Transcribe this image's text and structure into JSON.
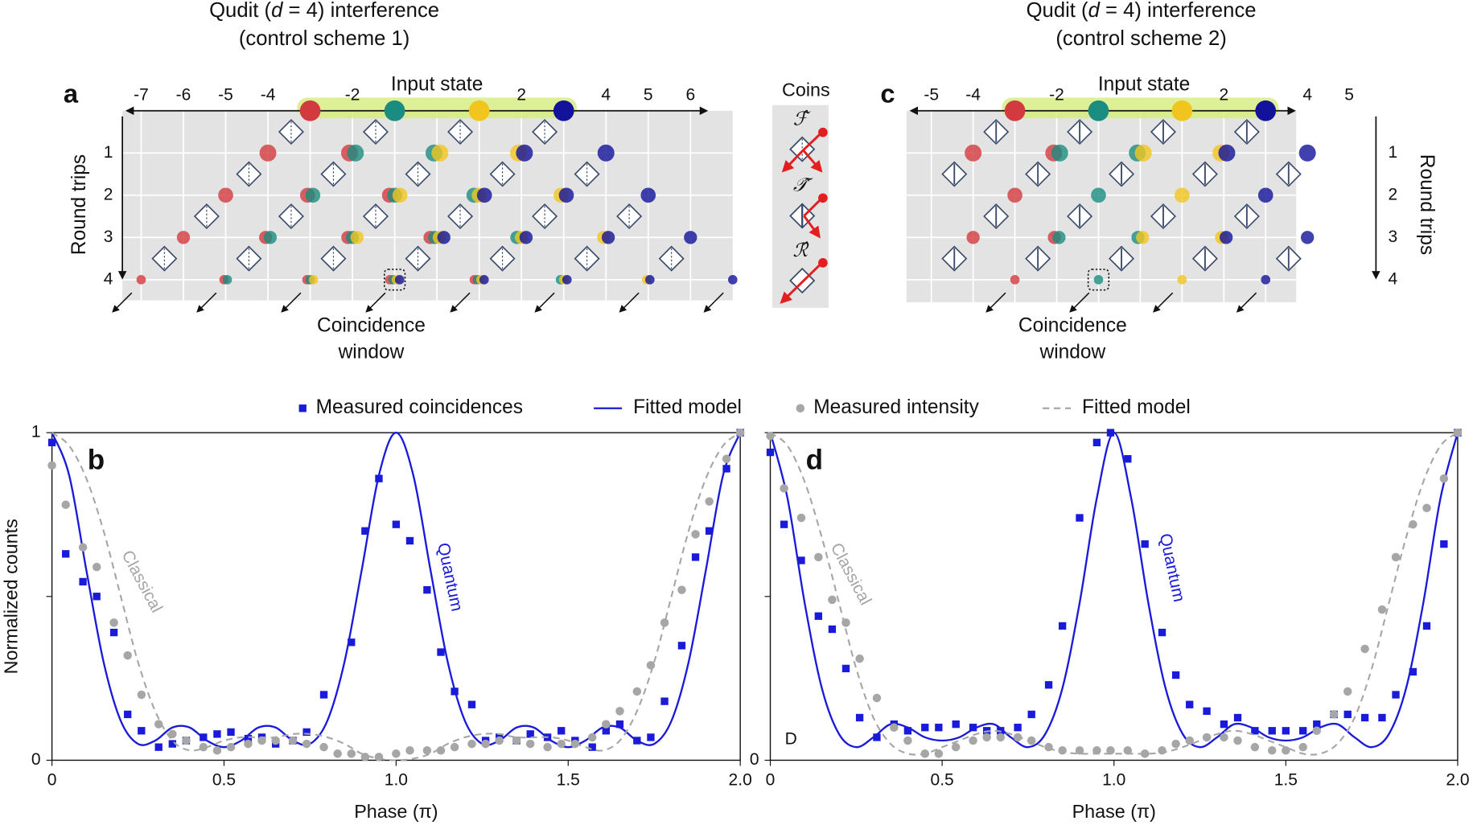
{
  "diagram_a": {
    "label": "a",
    "title": [
      "Qudit (",
      "d",
      " = 4) interference"
    ],
    "subtitle": "(control scheme 1)",
    "input_label": "Input state",
    "positions": [
      -7,
      -6,
      -5,
      -4,
      -2,
      2,
      4,
      5,
      6
    ],
    "rows": [
      1,
      2,
      3,
      4
    ],
    "axis_label": "Round trips",
    "output_label": [
      "Coincidence",
      "window"
    ]
  },
  "diagram_c": {
    "label": "c",
    "title": [
      "Qudit (",
      "d",
      " = 4) interference"
    ],
    "subtitle": "(control scheme 2)",
    "input_label": "Input state",
    "positions": [
      -5,
      -4,
      -2,
      2,
      4,
      5
    ],
    "rows": [
      1,
      2,
      3,
      4
    ],
    "axis_label": "Round trips",
    "output_label": [
      "Coincidence",
      "window"
    ]
  },
  "coins": {
    "title": "Coins",
    "labels": [
      "ℱ̂",
      "𝒯̂",
      "ℛ̂"
    ]
  },
  "chart_data": [
    {
      "type": "line",
      "label": "b",
      "xlabel": "Phase (π)",
      "ylabel": "Normalized counts",
      "xlim": [
        0,
        2
      ],
      "ylim": [
        0,
        1
      ],
      "xticks": [
        0,
        0.5,
        {
          "value": 1,
          "label": "1.0"
        },
        1.5,
        {
          "value": 2,
          "label": "2.0"
        }
      ],
      "yticks": [
        0,
        1
      ],
      "yminor": [
        0.5
      ],
      "annotations": [
        "Classical",
        "Quantum"
      ],
      "series": [
        {
          "name": "Measured coincidences",
          "marker": "square",
          "color": "#1a1adb",
          "x": [
            0,
            0.04,
            0.09,
            0.13,
            0.18,
            0.22,
            0.26,
            0.31,
            0.35,
            0.39,
            0.44,
            0.48,
            0.52,
            0.57,
            0.61,
            0.65,
            0.7,
            0.74,
            0.79,
            0.87,
            0.91,
            0.95,
            1.0,
            1.04,
            1.09,
            1.13,
            1.17,
            1.22,
            1.26,
            1.3,
            1.35,
            1.39,
            1.44,
            1.48,
            1.52,
            1.57,
            1.61,
            1.65,
            1.7,
            1.74,
            1.78,
            1.83,
            1.87,
            1.91,
            1.96,
            2.0
          ],
          "values": [
            0.97,
            0.63,
            0.545,
            0.5,
            0.39,
            0.14,
            0.09,
            0.04,
            0.05,
            0.06,
            0.07,
            0.08,
            0.086,
            0.066,
            0.07,
            0.05,
            0.06,
            0.086,
            0.2,
            0.36,
            0.7,
            0.86,
            0.72,
            0.67,
            0.52,
            0.33,
            0.21,
            0.17,
            0.06,
            0.07,
            0.06,
            0.08,
            0.07,
            0.09,
            0.06,
            0.04,
            0.09,
            0.11,
            0.06,
            0.07,
            0.18,
            0.35,
            0.62,
            0.7,
            0.89,
            1.0
          ]
        },
        {
          "name": "Fitted model",
          "linestyle": "solid",
          "color": "#1a1adb",
          "x": [
            0,
            0.05,
            0.1,
            0.15,
            0.2,
            0.25,
            0.3,
            0.35,
            0.4,
            0.45,
            0.5,
            0.55,
            0.6,
            0.65,
            0.7,
            0.75,
            0.8,
            0.85,
            0.9,
            0.95,
            1.0,
            1.05,
            1.1,
            1.15,
            1.2,
            1.25,
            1.3,
            1.35,
            1.4,
            1.45,
            1.5,
            1.55,
            1.6,
            1.65,
            1.7,
            1.75,
            1.8,
            1.85,
            1.9,
            1.95,
            2.0
          ],
          "values": [
            1.0,
            0.87,
            0.58,
            0.3,
            0.12,
            0.05,
            0.06,
            0.1,
            0.1,
            0.06,
            0.04,
            0.06,
            0.1,
            0.1,
            0.06,
            0.05,
            0.12,
            0.3,
            0.58,
            0.87,
            1.0,
            0.87,
            0.58,
            0.3,
            0.12,
            0.05,
            0.06,
            0.1,
            0.1,
            0.06,
            0.04,
            0.06,
            0.1,
            0.1,
            0.06,
            0.05,
            0.12,
            0.3,
            0.58,
            0.87,
            1.0
          ]
        },
        {
          "name": "Measured intensity",
          "marker": "circle",
          "color": "#a6a6a6",
          "x": [
            0,
            0.04,
            0.09,
            0.13,
            0.18,
            0.22,
            0.26,
            0.31,
            0.35,
            0.39,
            0.44,
            0.48,
            0.52,
            0.57,
            0.61,
            0.65,
            0.7,
            0.74,
            0.79,
            0.83,
            0.87,
            0.91,
            0.95,
            1.0,
            1.04,
            1.09,
            1.13,
            1.17,
            1.22,
            1.26,
            1.3,
            1.35,
            1.39,
            1.44,
            1.48,
            1.52,
            1.57,
            1.61,
            1.65,
            1.7,
            1.74,
            1.78,
            1.83,
            1.87,
            1.91,
            1.96,
            2.0
          ],
          "values": [
            0.9,
            0.78,
            0.65,
            0.59,
            0.42,
            0.32,
            0.2,
            0.11,
            0.08,
            0.06,
            0.04,
            0.03,
            0.04,
            0.05,
            0.06,
            0.06,
            0.06,
            0.05,
            0.04,
            0.02,
            0.02,
            0.01,
            0.01,
            0.02,
            0.03,
            0.03,
            0.03,
            0.04,
            0.05,
            0.05,
            0.06,
            0.06,
            0.05,
            0.04,
            0.05,
            0.05,
            0.07,
            0.11,
            0.15,
            0.21,
            0.29,
            0.42,
            0.52,
            0.69,
            0.79,
            0.92,
            1.0
          ]
        },
        {
          "name": "Fitted model",
          "linestyle": "dashed",
          "color": "#a6a6a6",
          "x": [
            0,
            0.05,
            0.1,
            0.15,
            0.2,
            0.25,
            0.3,
            0.35,
            0.4,
            0.45,
            0.5,
            0.55,
            0.6,
            0.65,
            0.7,
            0.75,
            0.8,
            0.85,
            0.9,
            0.95,
            1.0,
            1.05,
            1.1,
            1.15,
            1.2,
            1.25,
            1.3,
            1.35,
            1.4,
            1.45,
            1.5,
            1.55,
            1.6,
            1.65,
            1.7,
            1.75,
            1.8,
            1.85,
            1.9,
            1.95,
            2.0
          ],
          "values": [
            1.0,
            0.96,
            0.86,
            0.7,
            0.5,
            0.3,
            0.15,
            0.06,
            0.03,
            0.04,
            0.06,
            0.07,
            0.07,
            0.07,
            0.08,
            0.08,
            0.07,
            0.05,
            0.02,
            0.005,
            0.0,
            0.005,
            0.02,
            0.05,
            0.07,
            0.08,
            0.08,
            0.07,
            0.07,
            0.07,
            0.06,
            0.04,
            0.03,
            0.06,
            0.15,
            0.3,
            0.5,
            0.7,
            0.86,
            0.96,
            1.0
          ]
        }
      ]
    },
    {
      "type": "line",
      "label": "d",
      "xlabel": "Phase (π)",
      "note": "D",
      "xlim": [
        0,
        2
      ],
      "ylim": [
        0,
        1
      ],
      "xticks": [
        0,
        0.5,
        {
          "value": 1,
          "label": "1.0"
        },
        1.5,
        {
          "value": 2,
          "label": "2.0"
        }
      ],
      "yticks": [
        0
      ],
      "yminor": [
        0.5,
        1
      ],
      "annotations": [
        "Classical",
        "Quantum"
      ],
      "series": [
        {
          "marker": "square",
          "color": "#1a1adb",
          "x": [
            0,
            0.04,
            0.09,
            0.14,
            0.18,
            0.22,
            0.26,
            0.31,
            0.36,
            0.4,
            0.45,
            0.49,
            0.54,
            0.59,
            0.63,
            0.67,
            0.72,
            0.76,
            0.81,
            0.85,
            0.9,
            0.95,
            0.99,
            1.04,
            1.09,
            1.14,
            1.18,
            1.22,
            1.27,
            1.32,
            1.36,
            1.41,
            1.46,
            1.5,
            1.55,
            1.59,
            1.64,
            1.68,
            1.73,
            1.78,
            1.82,
            1.87,
            1.91,
            1.96,
            2.0
          ],
          "values": [
            0.94,
            0.72,
            0.61,
            0.44,
            0.4,
            0.28,
            0.13,
            0.07,
            0.11,
            0.09,
            0.1,
            0.1,
            0.11,
            0.1,
            0.09,
            0.09,
            0.1,
            0.14,
            0.23,
            0.41,
            0.74,
            0.97,
            1.0,
            0.92,
            0.66,
            0.39,
            0.26,
            0.17,
            0.15,
            0.11,
            0.13,
            0.09,
            0.09,
            0.09,
            0.09,
            0.11,
            0.14,
            0.14,
            0.13,
            0.13,
            0.2,
            0.27,
            0.41,
            0.66,
            1.0
          ]
        },
        {
          "linestyle": "solid",
          "color": "#1a1adb",
          "x": [
            0,
            0.05,
            0.1,
            0.15,
            0.2,
            0.25,
            0.3,
            0.35,
            0.4,
            0.45,
            0.5,
            0.55,
            0.6,
            0.65,
            0.7,
            0.75,
            0.8,
            0.85,
            0.9,
            0.95,
            1.0,
            1.05,
            1.1,
            1.15,
            1.2,
            1.25,
            1.3,
            1.35,
            1.4,
            1.45,
            1.5,
            1.55,
            1.6,
            1.65,
            1.7,
            1.75,
            1.8,
            1.85,
            1.9,
            1.95,
            2.0
          ],
          "values": [
            1.0,
            0.8,
            0.48,
            0.22,
            0.08,
            0.04,
            0.07,
            0.11,
            0.1,
            0.07,
            0.06,
            0.07,
            0.1,
            0.11,
            0.07,
            0.04,
            0.08,
            0.22,
            0.48,
            0.8,
            1.0,
            0.8,
            0.48,
            0.22,
            0.08,
            0.04,
            0.07,
            0.11,
            0.1,
            0.07,
            0.06,
            0.07,
            0.1,
            0.11,
            0.07,
            0.04,
            0.08,
            0.22,
            0.48,
            0.8,
            1.0
          ]
        },
        {
          "marker": "circle",
          "color": "#a6a6a6",
          "x": [
            0,
            0.04,
            0.09,
            0.14,
            0.18,
            0.22,
            0.26,
            0.31,
            0.36,
            0.4,
            0.45,
            0.49,
            0.54,
            0.59,
            0.63,
            0.67,
            0.72,
            0.76,
            0.81,
            0.85,
            0.9,
            0.95,
            0.99,
            1.04,
            1.09,
            1.14,
            1.18,
            1.22,
            1.27,
            1.32,
            1.36,
            1.41,
            1.46,
            1.5,
            1.55,
            1.59,
            1.64,
            1.68,
            1.73,
            1.78,
            1.82,
            1.87,
            1.91,
            1.96,
            2.0
          ],
          "values": [
            0.99,
            0.83,
            0.74,
            0.62,
            0.49,
            0.42,
            0.31,
            0.19,
            0.1,
            0.06,
            0.02,
            0.02,
            0.04,
            0.06,
            0.07,
            0.07,
            0.07,
            0.06,
            0.04,
            0.03,
            0.03,
            0.03,
            0.03,
            0.03,
            0.02,
            0.03,
            0.05,
            0.06,
            0.07,
            0.07,
            0.06,
            0.04,
            0.03,
            0.03,
            0.04,
            0.09,
            0.14,
            0.21,
            0.34,
            0.46,
            0.62,
            0.72,
            0.77,
            0.86,
            1.0
          ]
        },
        {
          "linestyle": "dashed",
          "color": "#a6a6a6",
          "x": [
            0,
            0.05,
            0.1,
            0.15,
            0.2,
            0.25,
            0.3,
            0.35,
            0.4,
            0.45,
            0.5,
            0.55,
            0.6,
            0.65,
            0.7,
            0.75,
            0.8,
            0.85,
            0.9,
            0.95,
            1.0,
            1.05,
            1.1,
            1.15,
            1.2,
            1.25,
            1.3,
            1.35,
            1.4,
            1.45,
            1.5,
            1.55,
            1.6,
            1.65,
            1.7,
            1.75,
            1.8,
            1.85,
            1.9,
            1.95,
            2.0
          ],
          "values": [
            1.0,
            0.96,
            0.85,
            0.68,
            0.48,
            0.28,
            0.13,
            0.05,
            0.02,
            0.02,
            0.04,
            0.06,
            0.08,
            0.09,
            0.08,
            0.06,
            0.04,
            0.025,
            0.02,
            0.02,
            0.02,
            0.02,
            0.02,
            0.025,
            0.04,
            0.06,
            0.08,
            0.09,
            0.08,
            0.06,
            0.04,
            0.02,
            0.02,
            0.05,
            0.13,
            0.28,
            0.48,
            0.68,
            0.85,
            0.96,
            1.0
          ]
        }
      ]
    }
  ]
}
